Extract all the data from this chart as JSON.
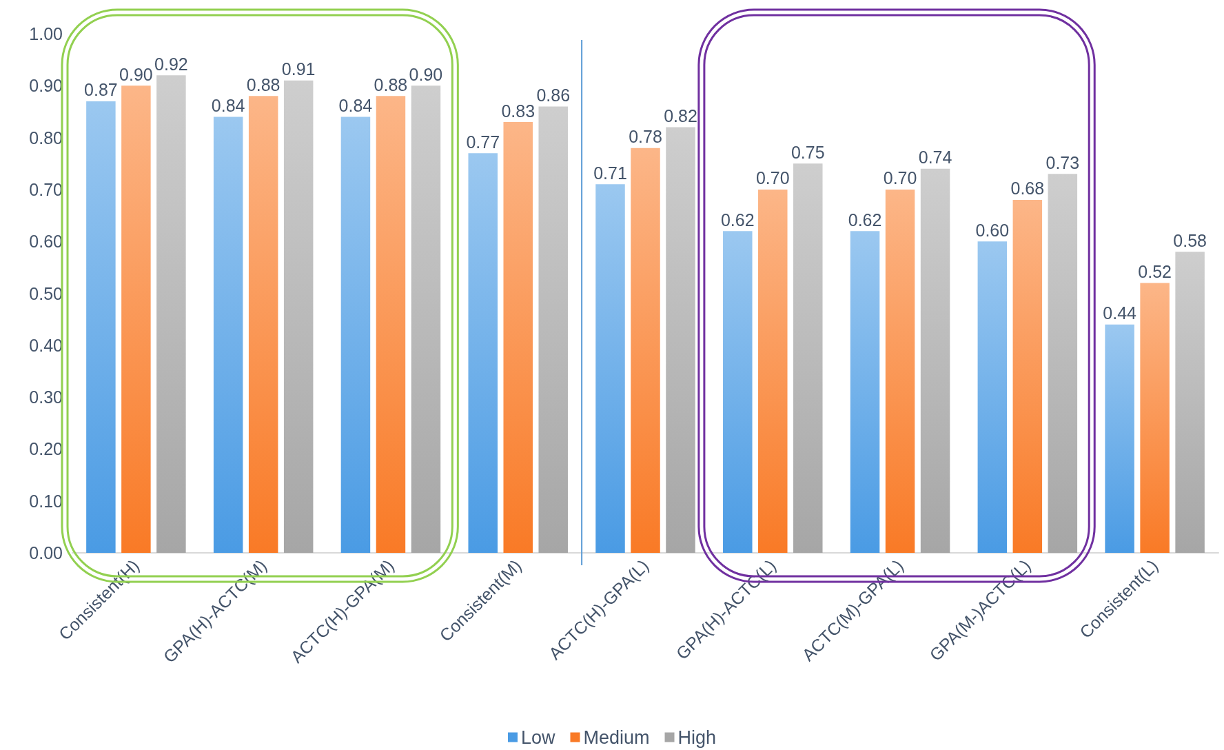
{
  "chart_data": {
    "type": "bar",
    "categories": [
      "Consistent(H)",
      "GPA(H)-ACTC(M)",
      "ACTC(H)-GPA(M)",
      "Consistent(M)",
      "ACTC(H)-GPA(L)",
      "GPA(H)-ACTC(L)",
      "ACTC(M)-GPA(L)",
      "GPA(M-)ACTC(L)",
      "Consistent(L)"
    ],
    "series": [
      {
        "name": "Low",
        "color": "#4a9be4",
        "values": [
          0.87,
          0.84,
          0.84,
          0.77,
          0.71,
          0.62,
          0.62,
          0.6,
          0.44
        ],
        "value_labels": [
          "0.87",
          "0.84",
          "0.84",
          "0.77",
          "0.71",
          "0.62",
          "0.62",
          "0.60",
          "0.44"
        ]
      },
      {
        "name": "Medium",
        "color": "#f97a26",
        "values": [
          0.9,
          0.88,
          0.88,
          0.83,
          0.78,
          0.7,
          0.7,
          0.68,
          0.52
        ],
        "value_labels": [
          "0.90",
          "0.88",
          "0.88",
          "0.83",
          "0.78",
          "0.70",
          "0.70",
          "0.68",
          "0.52"
        ]
      },
      {
        "name": "High",
        "color": "#a6a6a6",
        "values": [
          0.92,
          0.91,
          0.9,
          0.86,
          0.82,
          0.75,
          0.74,
          0.73,
          0.58
        ],
        "value_labels": [
          "0.92",
          "0.91",
          "0.90",
          "0.86",
          "0.82",
          "0.75",
          "0.74",
          "0.73",
          "0.58"
        ]
      }
    ],
    "ylim": [
      0,
      1
    ],
    "yticks": [
      {
        "value": 0,
        "label": "0.00"
      },
      {
        "value": 0.1,
        "label": "0.10"
      },
      {
        "value": 0.2,
        "label": "0.20"
      },
      {
        "value": 0.3,
        "label": "0.30"
      },
      {
        "value": 0.4,
        "label": "0.40"
      },
      {
        "value": 0.5,
        "label": "0.50"
      },
      {
        "value": 0.6,
        "label": "0.60"
      },
      {
        "value": 0.7,
        "label": "0.70"
      },
      {
        "value": 0.8,
        "label": "0.80"
      },
      {
        "value": 0.9,
        "label": "0.90"
      },
      {
        "value": 1,
        "label": "1.00"
      }
    ],
    "grid": false,
    "legend": "bottom",
    "ref_lines": [
      {
        "axis": "x",
        "value": "Consistent(M)",
        "color": "#5b9bd5"
      }
    ]
  }
}
